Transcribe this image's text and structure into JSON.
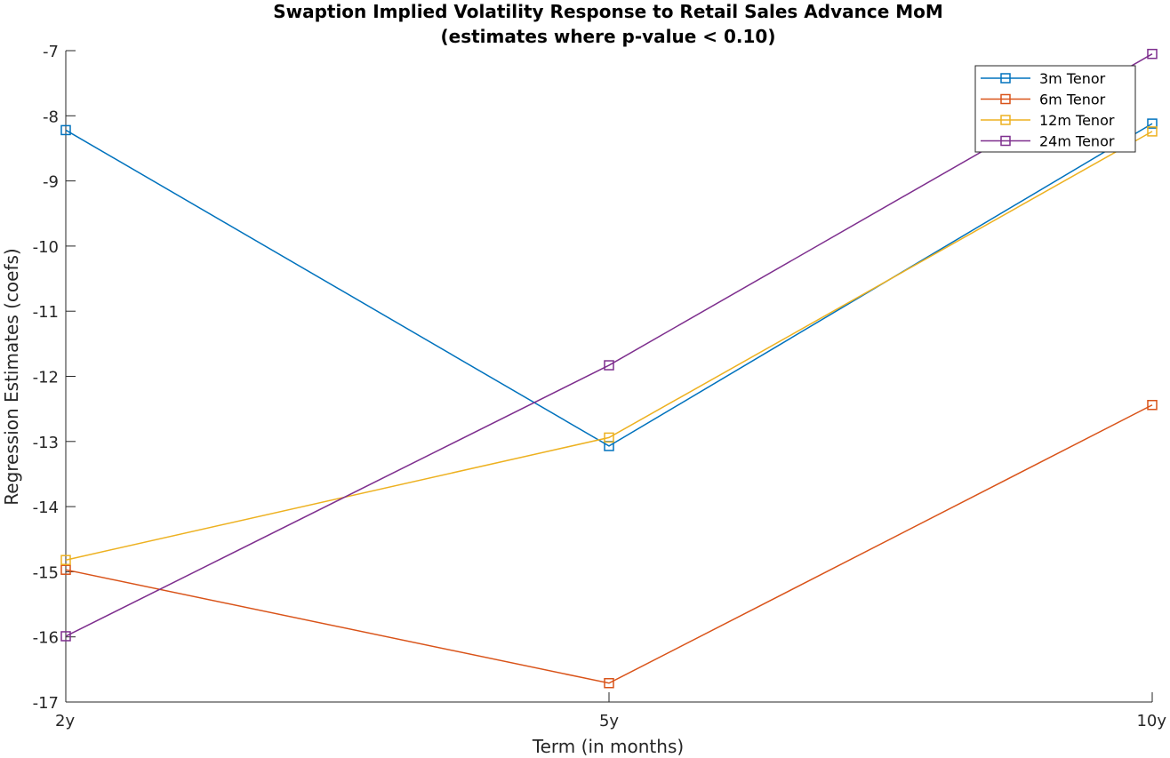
{
  "chart_data": {
    "type": "line",
    "title": "Swaption Implied Volatility Response to Retail Sales Advance MoM",
    "subtitle": "(estimates where p-value < 0.10)",
    "xlabel": "Term (in months)",
    "ylabel": "Regression Estimates (coefs)",
    "categories": [
      "2y",
      "5y",
      "10y"
    ],
    "ylim": [
      -17,
      -7
    ],
    "yticks": [
      -7,
      -8,
      -9,
      -10,
      -11,
      -12,
      -13,
      -14,
      -15,
      -16,
      -17
    ],
    "grid": false,
    "legend_position": "top-right",
    "marker": "square",
    "series": [
      {
        "name": "3m Tenor",
        "color": "#0072BD",
        "values": [
          -8.22,
          -13.07,
          -8.12
        ]
      },
      {
        "name": "6m Tenor",
        "color": "#D95319",
        "values": [
          -14.97,
          -16.71,
          -12.44
        ]
      },
      {
        "name": "12m Tenor",
        "color": "#EDB120",
        "values": [
          -14.82,
          -12.94,
          -8.24
        ]
      },
      {
        "name": "24m Tenor",
        "color": "#7E2F8E",
        "values": [
          -15.99,
          -11.83,
          -7.05
        ]
      }
    ]
  }
}
